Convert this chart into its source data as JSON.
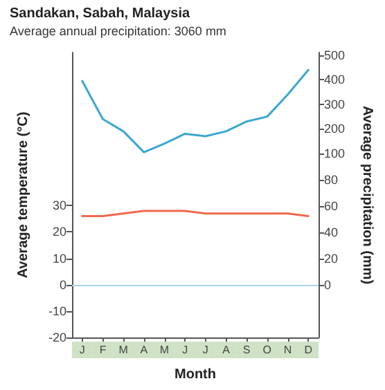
{
  "chart_data": {
    "type": "line",
    "title": "Sandakan, Sabah, Malaysia",
    "subtitle": "Average annual precipitation: 3060 mm",
    "xlabel": "Month",
    "ylabel": "Average temperature (°C)",
    "y2label": "Average precipitation (mm)",
    "categories": [
      "J",
      "F",
      "M",
      "A",
      "M",
      "J",
      "J",
      "A",
      "S",
      "O",
      "N",
      "D"
    ],
    "series": [
      {
        "color": "#f0684c",
        "values": [
          26,
          26,
          27,
          28,
          28,
          28,
          27,
          27,
          27,
          27,
          27,
          26
        ]
      },
      {
        "color": "#3ba7d1",
        "axis": "y3",
        "values": [
          395,
          240,
          190,
          105,
          140,
          180,
          170,
          190,
          230,
          250,
          340,
          440
        ]
      }
    ],
    "ylim": [
      -20,
      88
    ],
    "yticks": [
      -20,
      -10,
      0,
      10,
      20,
      30
    ],
    "y2lim": [
      -40,
      177
    ],
    "y2ticks": [
      0,
      20,
      40,
      60,
      80
    ],
    "y3lim": [
      -650,
      511
    ],
    "y3ticks": [
      100,
      200,
      300,
      400,
      500
    ],
    "ref_lines": [
      {
        "axis": "y",
        "value": 0,
        "color": "#a9d6ee"
      }
    ],
    "grid": false,
    "legend": false,
    "marker": "none",
    "line_style": "solid"
  }
}
